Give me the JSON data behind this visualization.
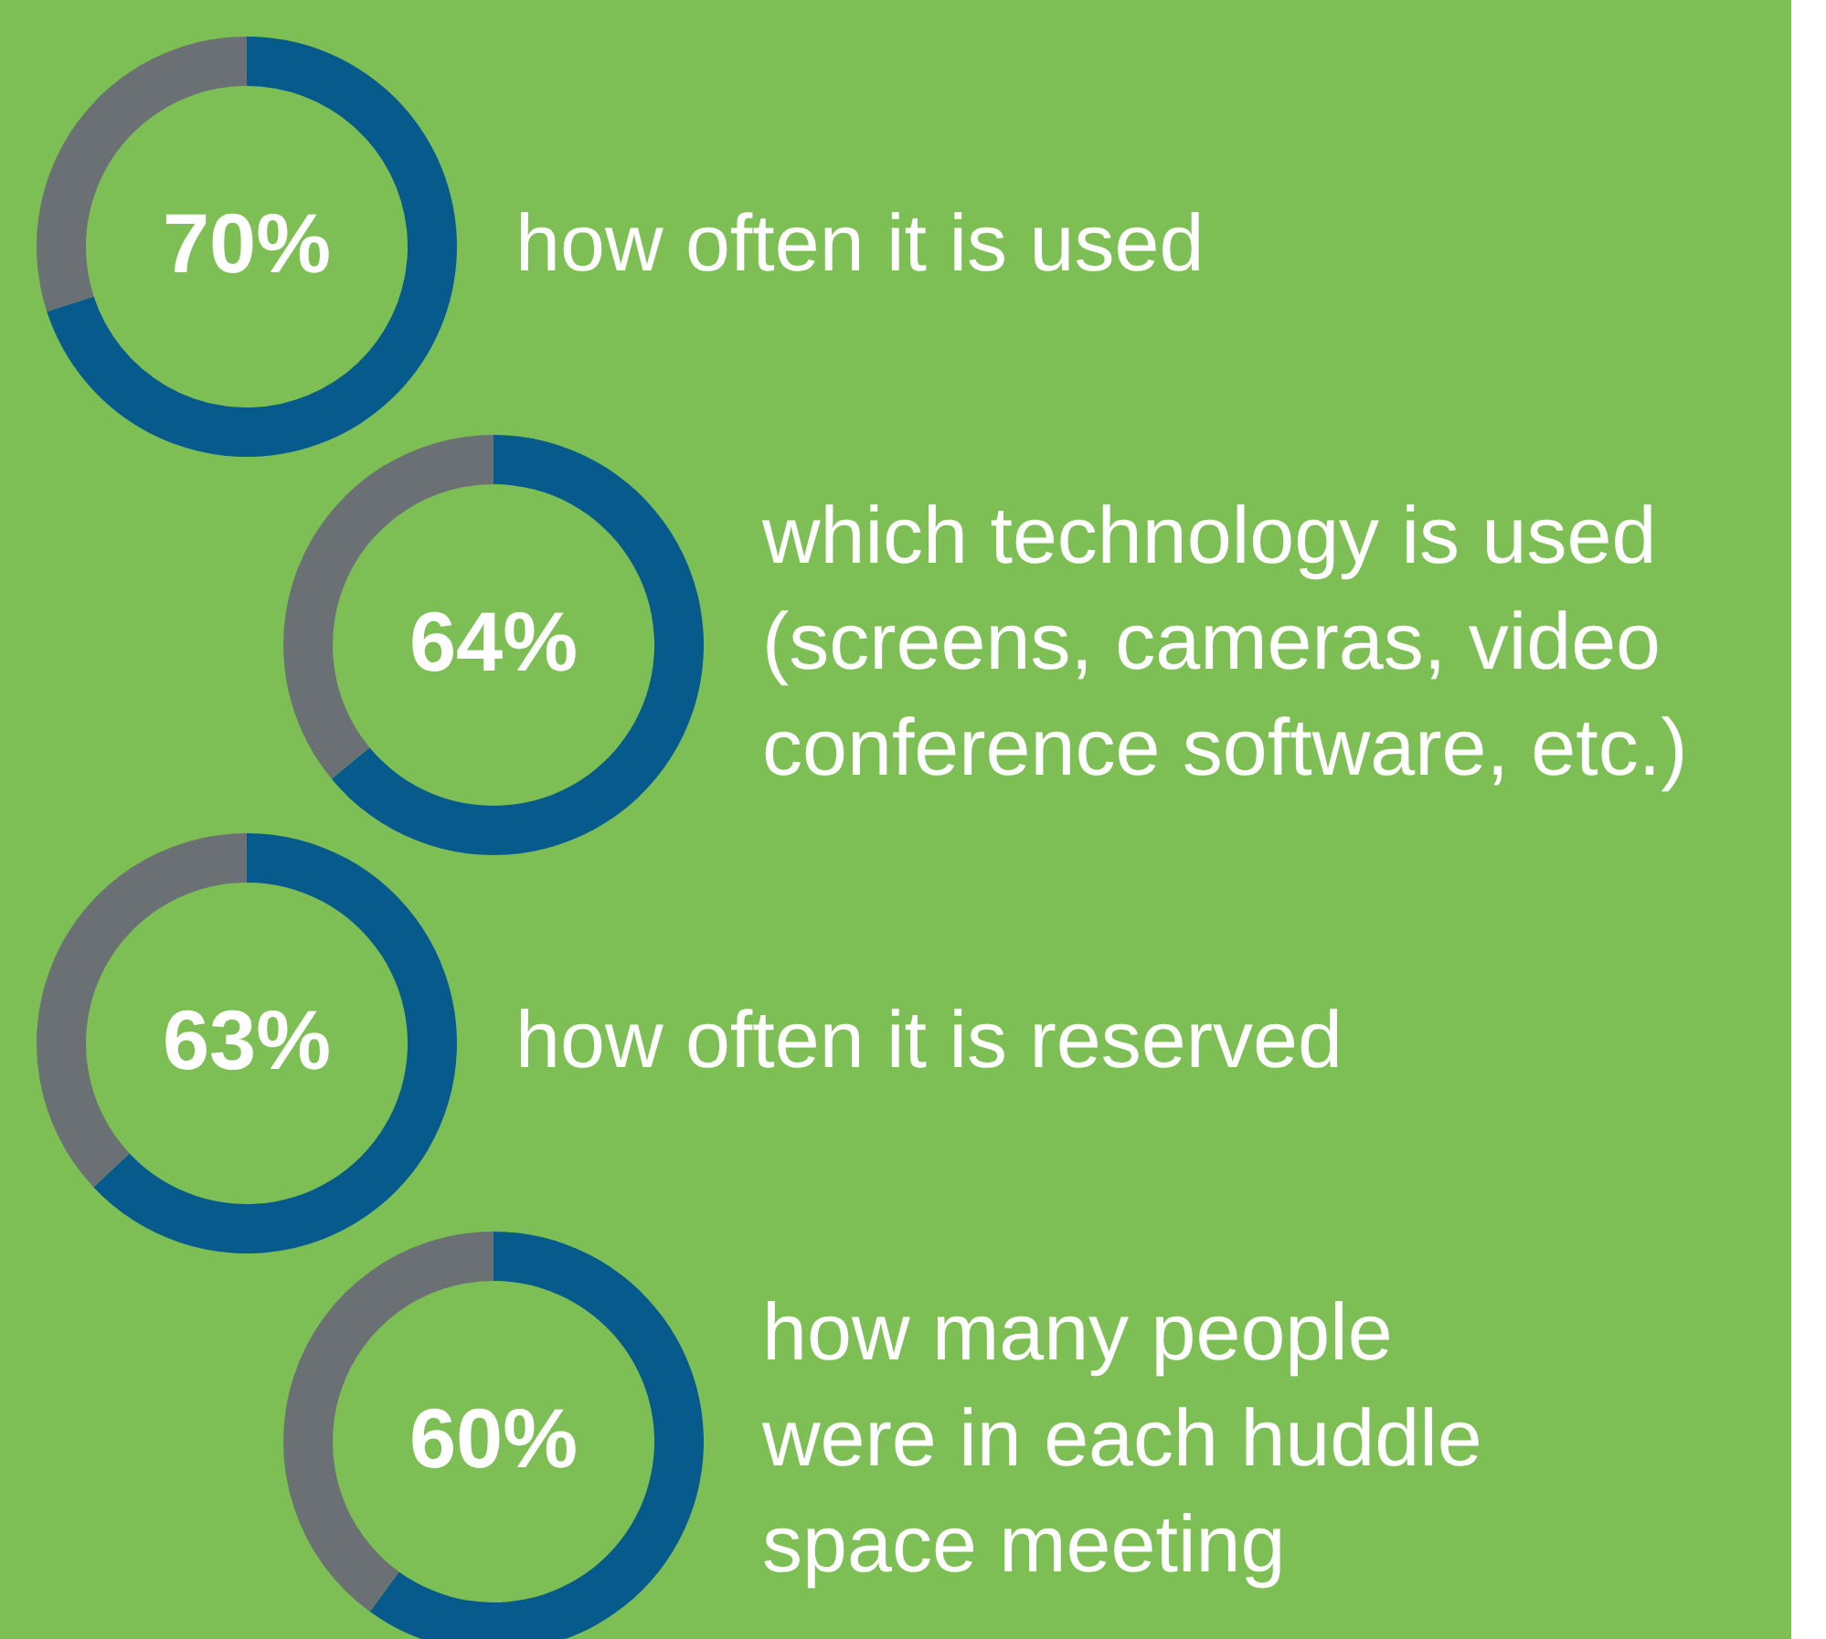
{
  "chart_data": [
    {
      "type": "donut",
      "title": "how often it is used",
      "categories": [
        null,
        null
      ],
      "values": [
        70,
        30
      ],
      "colors": [
        "#075b8c",
        "#6b7075"
      ],
      "value_labels": [
        "70%",
        null
      ]
    },
    {
      "type": "donut",
      "title": "which technology is used\n(screens, cameras, video\nconference software, etc.)",
      "categories": [
        null,
        null
      ],
      "values": [
        64,
        36
      ],
      "colors": [
        "#075b8c",
        "#6b7075"
      ],
      "value_labels": [
        "64%",
        null
      ]
    },
    {
      "type": "donut",
      "title": "how often it is reserved",
      "categories": [
        null,
        null
      ],
      "values": [
        63,
        37
      ],
      "colors": [
        "#075b8c",
        "#6b7075"
      ],
      "value_labels": [
        "63%",
        null
      ]
    },
    {
      "type": "donut",
      "title": "how many people\nwere in each huddle\nspace meeting",
      "categories": [
        null,
        null
      ],
      "values": [
        60,
        40
      ],
      "colors": [
        "#075b8c",
        "#6b7075"
      ],
      "value_labels": [
        "60%",
        null
      ]
    }
  ]
}
